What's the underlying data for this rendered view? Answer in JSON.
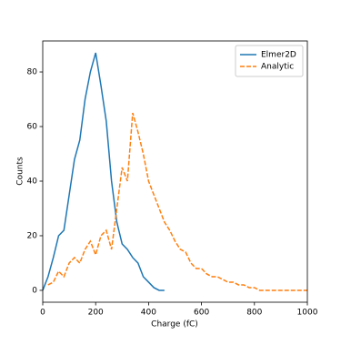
{
  "chart_data": {
    "type": "line",
    "xlabel": "Charge (fC)",
    "ylabel": "Counts",
    "x": [
      0,
      20,
      40,
      60,
      80,
      100,
      120,
      140,
      160,
      180,
      200,
      220,
      240,
      260,
      280,
      300,
      320,
      340,
      360,
      380,
      400,
      420,
      440,
      460,
      480,
      500,
      520,
      540,
      560,
      580,
      600,
      620,
      640,
      660,
      680,
      700,
      720,
      740,
      760,
      780,
      800,
      820,
      840,
      860,
      880,
      900,
      920,
      940,
      960,
      980,
      1000
    ],
    "series": [
      {
        "name": "Elmer2D",
        "color": "#1f77b4",
        "dash": false,
        "values": [
          0,
          5,
          12,
          20,
          22,
          35,
          48,
          55,
          70,
          80,
          87,
          75,
          62,
          40,
          25,
          17,
          15,
          12,
          10,
          5,
          3,
          1,
          0,
          0,
          null,
          null,
          null,
          null,
          null,
          null,
          null,
          null,
          null,
          null,
          null,
          null,
          null,
          null,
          null,
          null,
          null,
          null,
          null,
          null,
          null,
          null,
          null,
          null,
          null,
          null,
          null
        ]
      },
      {
        "name": "Analytic",
        "color": "#ff7f0e",
        "dash": true,
        "values": [
          null,
          2,
          3,
          7,
          5,
          10,
          12,
          10,
          15,
          18,
          13,
          20,
          22,
          15,
          30,
          45,
          40,
          65,
          58,
          50,
          40,
          35,
          30,
          25,
          22,
          18,
          15,
          14,
          10,
          8,
          8,
          6,
          5,
          5,
          4,
          3,
          3,
          2,
          2,
          1,
          1,
          0,
          0,
          0,
          0,
          0,
          0,
          0,
          0,
          0,
          0
        ]
      }
    ],
    "xlim": [
      0,
      1000
    ],
    "ylim": [
      -4.35,
      91.35
    ],
    "xticks": [
      0,
      200,
      400,
      600,
      800,
      1000
    ],
    "yticks": [
      0,
      20,
      40,
      60,
      80
    ],
    "legend": "upper right"
  }
}
